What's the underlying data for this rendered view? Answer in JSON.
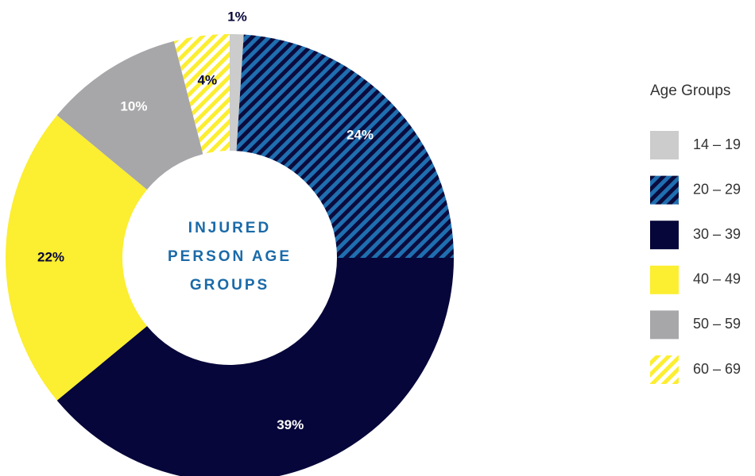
{
  "chart_data": {
    "type": "pie",
    "title": "INJURED PERSON AGE GROUPS",
    "legend_title": "Age Groups",
    "categories": [
      "14 – 19",
      "20 – 29",
      "30 – 39",
      "40 – 49",
      "50 – 59",
      "60 – 69"
    ],
    "values": [
      1,
      24,
      39,
      22,
      10,
      4
    ],
    "value_labels": [
      "1%",
      "24%",
      "39%",
      "22%",
      "10%",
      "4%"
    ],
    "colors": [
      "#cccccc",
      "#0b0b3d",
      "#06063a",
      "#fcee30",
      "#a7a7a9",
      "#ffffff"
    ],
    "stripe_colors": [
      null,
      "#1f6fb0",
      null,
      null,
      null,
      "#fcee30"
    ],
    "label_colors": [
      "#06063a",
      "#ffffff",
      "#ffffff",
      "#06063a",
      "#ffffff",
      "#06063a"
    ],
    "title_color": "#1a6aa8"
  }
}
